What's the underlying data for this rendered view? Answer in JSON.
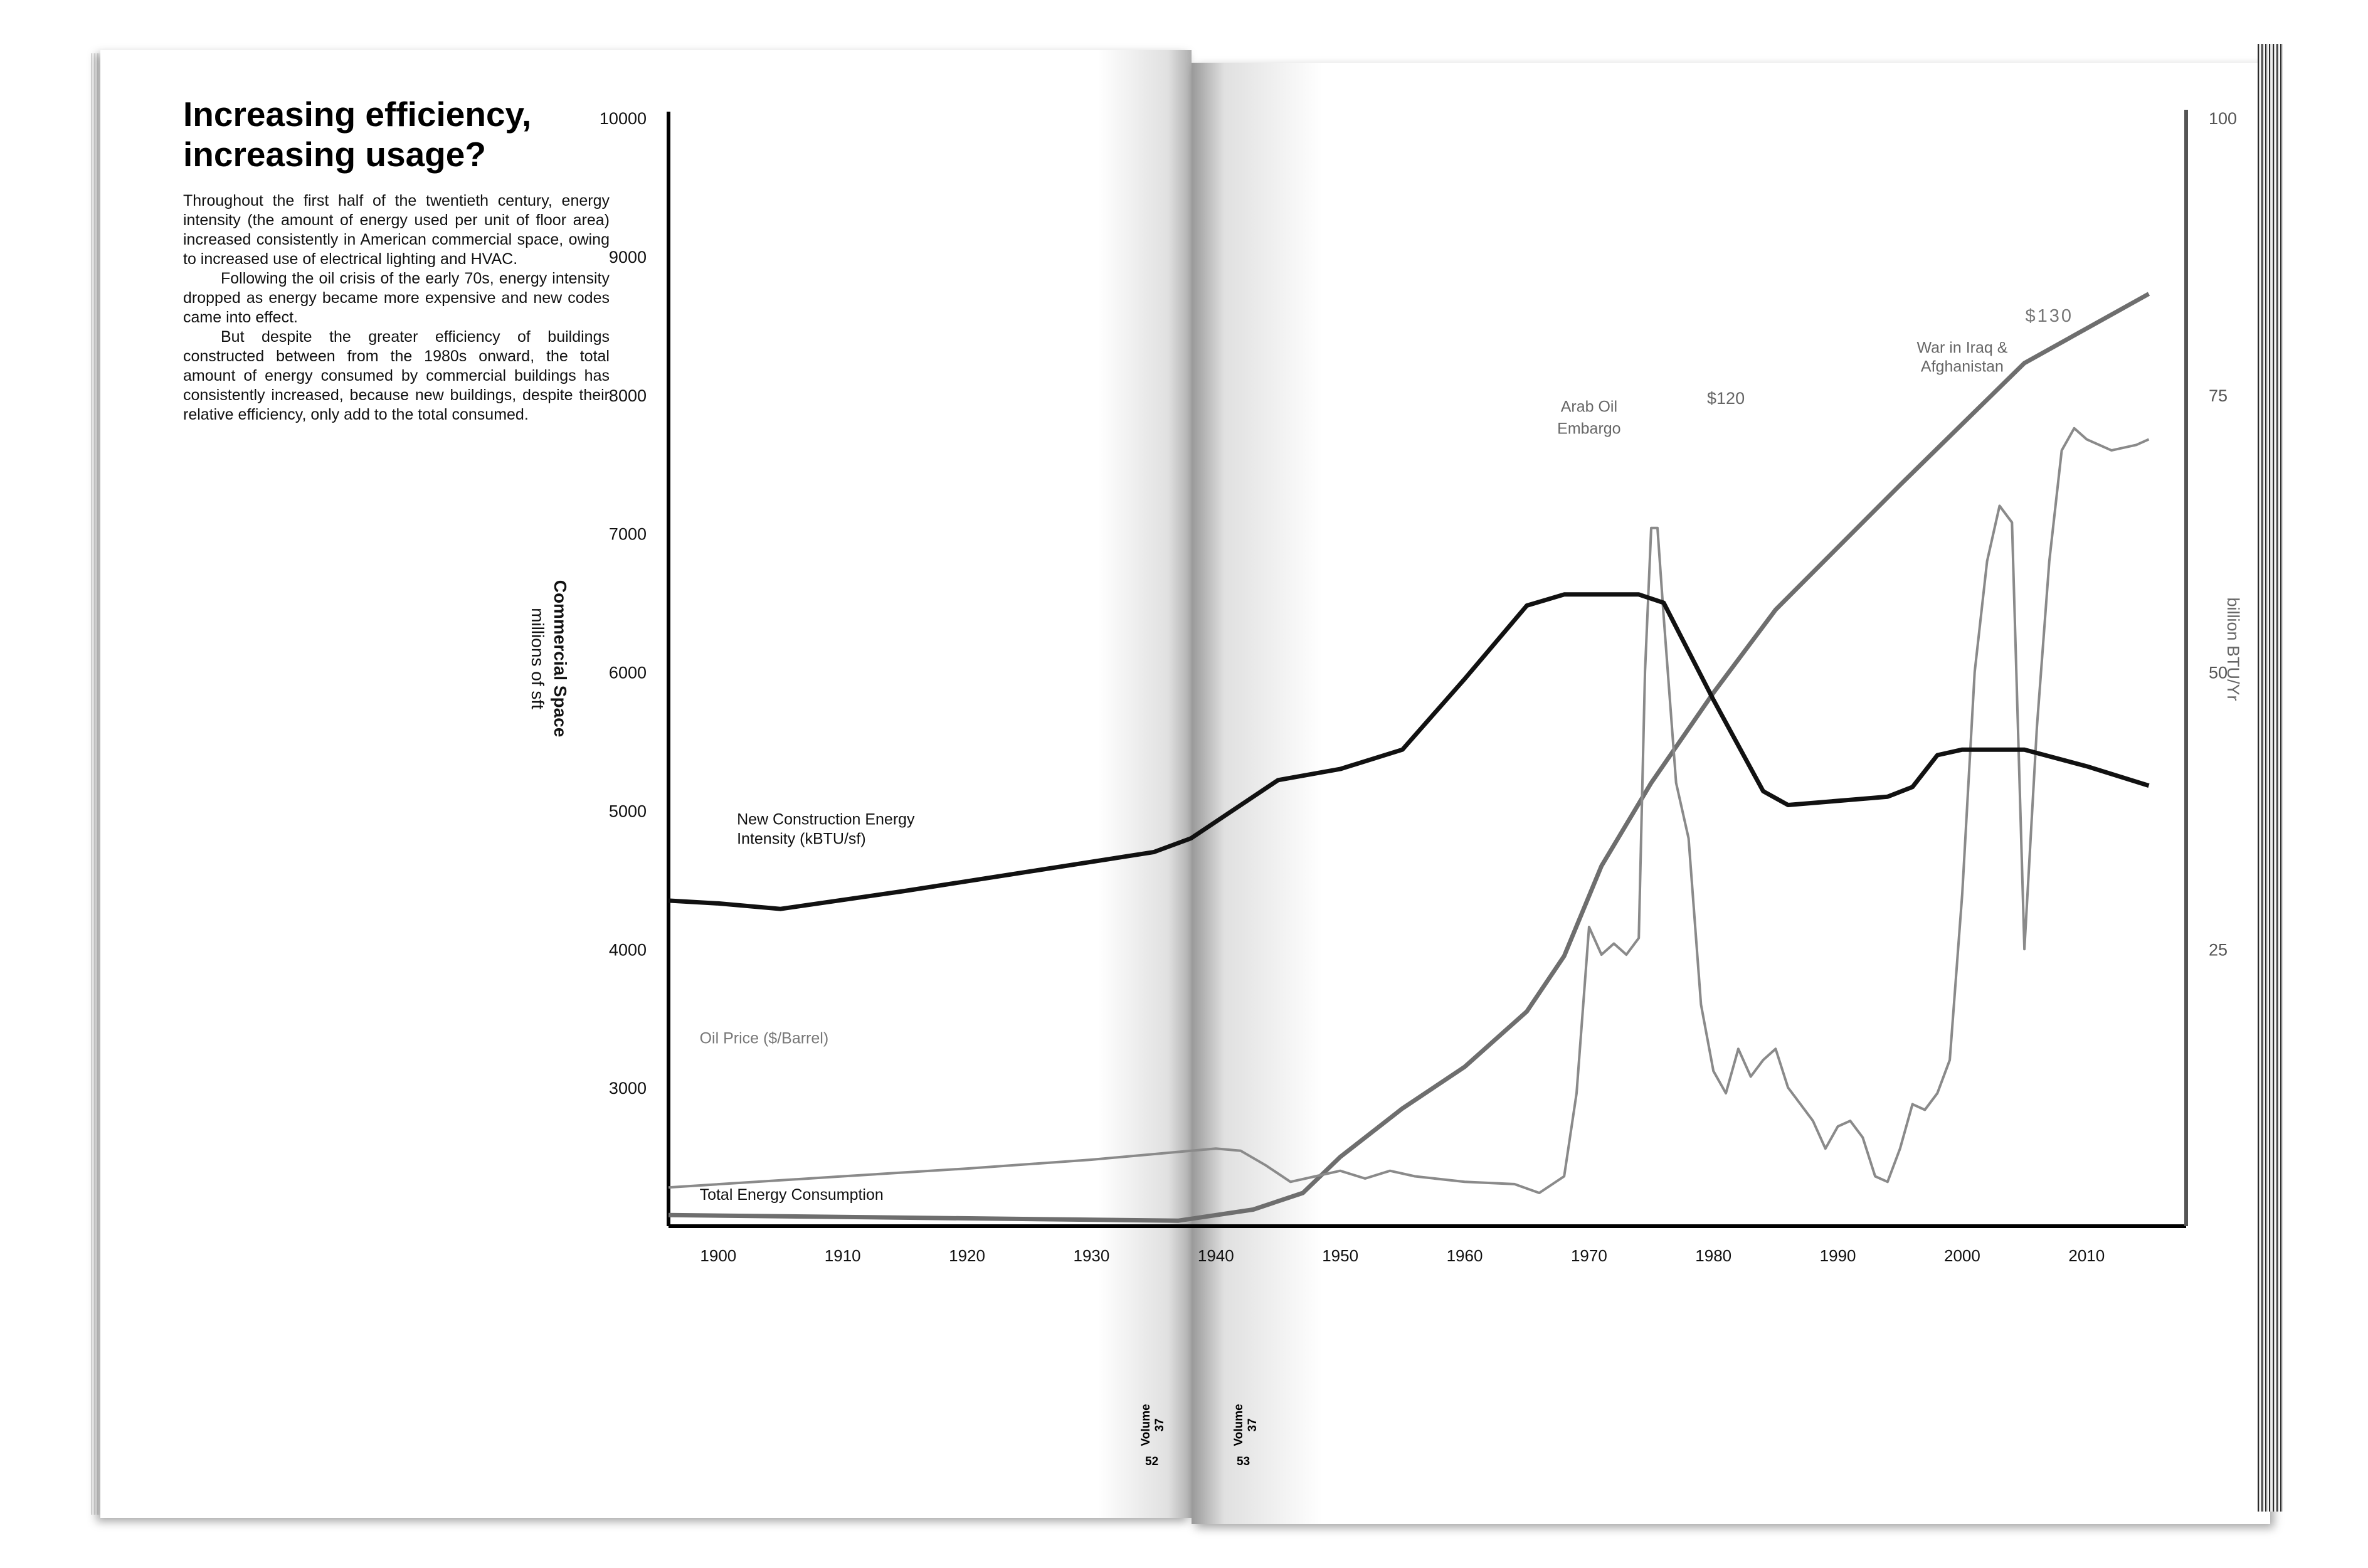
{
  "article": {
    "headline": "Increasing efficiency, increasing usage?",
    "paragraphs": [
      "Throughout the first half of the twentieth century, energy intensity (the amount of energy used per unit of floor area) increased consistently in American commercial space, owing to increased use of electrical lighting and HVAC.",
      "Following the oil crisis of the early 70s, energy intensity dropped as energy became more expensive and new codes came into effect.",
      "But despite the greater efficiency of buildings constructed between from the 1980s onward, the total amount of energy consumed by commercial buildings has consistently increased, because new buildings, despite their relative efficiency, only add to the total consumed."
    ]
  },
  "footer": {
    "left": {
      "volume": "Volume 37",
      "page": "52"
    },
    "right": {
      "volume": "Volume 37",
      "page": "53"
    }
  },
  "chart_data": {
    "type": "line",
    "title": "",
    "xlabel": "",
    "ylabel": "Commercial Space millions of sft",
    "ylabel_lines": [
      "Commercial Space",
      "millions of sft"
    ],
    "ylabel_right": "billion BTU/Yr",
    "xlim": [
      1896,
      2018
    ],
    "ylim": [
      2000,
      10000
    ],
    "ylim_right": [
      0,
      100
    ],
    "x_ticks": [
      1900,
      1910,
      1920,
      1930,
      1940,
      1950,
      1960,
      1970,
      1980,
      1990,
      2000,
      2010
    ],
    "y_ticks": [
      3000,
      4000,
      5000,
      6000,
      7000,
      8000,
      9000,
      10000
    ],
    "y_ticks_right": [
      25,
      50,
      75,
      100
    ],
    "grid": false,
    "legend": "inline labels",
    "series": [
      {
        "name": "New Construction Energy Intensity (kBTU/sf)",
        "label_lines": [
          "New Construction Energy",
          "Intensity (kBTU/sf)"
        ],
        "color": "#111111",
        "stroke_width": 7,
        "x": [
          1896,
          1900,
          1905,
          1915,
          1925,
          1935,
          1938,
          1945,
          1950,
          1955,
          1960,
          1965,
          1968,
          1972,
          1974,
          1976,
          1980,
          1984,
          1986,
          1990,
          1994,
          1996,
          1998,
          2000,
          2005,
          2010,
          2015
        ],
        "y": [
          4350,
          4330,
          4290,
          4420,
          4560,
          4700,
          4800,
          5220,
          5300,
          5440,
          5950,
          6480,
          6560,
          6560,
          6560,
          6500,
          5800,
          5140,
          5040,
          5070,
          5100,
          5170,
          5400,
          5440,
          5440,
          5320,
          5180
        ]
      },
      {
        "name": "Oil Price ($/Barrel)",
        "label_lines": [
          "Oil Price ($/Barrel)"
        ],
        "color": "#8a8a8a",
        "stroke_width": 4,
        "x": [
          1896,
          1910,
          1920,
          1930,
          1935,
          1938,
          1940,
          1942,
          1944,
          1946,
          1948,
          1950,
          1952,
          1954,
          1956,
          1960,
          1964,
          1966,
          1968,
          1969,
          1970,
          1971,
          1972,
          1973,
          1974,
          1974.5,
          1975,
          1975.5,
          1976,
          1977,
          1978,
          1979,
          1980,
          1981,
          1982,
          1983,
          1984,
          1985,
          1986,
          1987,
          1988,
          1989,
          1990,
          1991,
          1992,
          1993,
          1994,
          1995,
          1996,
          1997,
          1998,
          1999,
          2000,
          2001,
          2002,
          2003,
          2004,
          2005,
          2006,
          2007,
          2008,
          2009,
          2010,
          2012,
          2014,
          2015
        ],
        "y": [
          3.5,
          4.5,
          5.2,
          6.0,
          6.5,
          6.8,
          7.0,
          6.8,
          5.5,
          4.0,
          4.5,
          5.0,
          4.3,
          5.0,
          4.5,
          4.0,
          3.8,
          3.0,
          4.5,
          12.0,
          27.0,
          24.5,
          25.5,
          24.5,
          26.0,
          50.0,
          63.0,
          63.0,
          55.0,
          40.0,
          35.0,
          20.0,
          14.0,
          12.0,
          16.0,
          13.5,
          15.0,
          16.0,
          12.5,
          11.0,
          9.5,
          7.0,
          9.0,
          9.5,
          8.0,
          4.5,
          4.0,
          7.0,
          11.0,
          10.5,
          12.0,
          15.0,
          30.0,
          50.0,
          60.0,
          65.0,
          63.5,
          25.0,
          45.0,
          60.0,
          70.0,
          72.0,
          71.0,
          70.0,
          70.5,
          71.0
        ]
      },
      {
        "name": "Total Energy Consumption",
        "label_lines": [
          "Total Energy Consumption"
        ],
        "color": "#6e6e6e",
        "stroke_width": 7,
        "x": [
          1896,
          1937,
          1943,
          1947,
          1950,
          1955,
          1960,
          1965,
          1968,
          1971,
          1975,
          1980,
          1985,
          1995,
          2005,
          2015
        ],
        "y": [
          2080,
          2040,
          2120,
          2240,
          2500,
          2850,
          3150,
          3550,
          3950,
          4600,
          5200,
          5850,
          6450,
          7350,
          8230,
          8730
        ]
      }
    ],
    "annotations": [
      {
        "text": "Arab Oil",
        "text2": "Embargo",
        "x": 1974,
        "y_right": 73
      },
      {
        "text": "$120",
        "x": 1981,
        "y_right": 73
      },
      {
        "text": "War in Iraq &",
        "text2": "Afghanistan",
        "x": 2000,
        "y_right": 77
      },
      {
        "text": "$130",
        "x": 2007,
        "y_right": 80
      }
    ]
  }
}
